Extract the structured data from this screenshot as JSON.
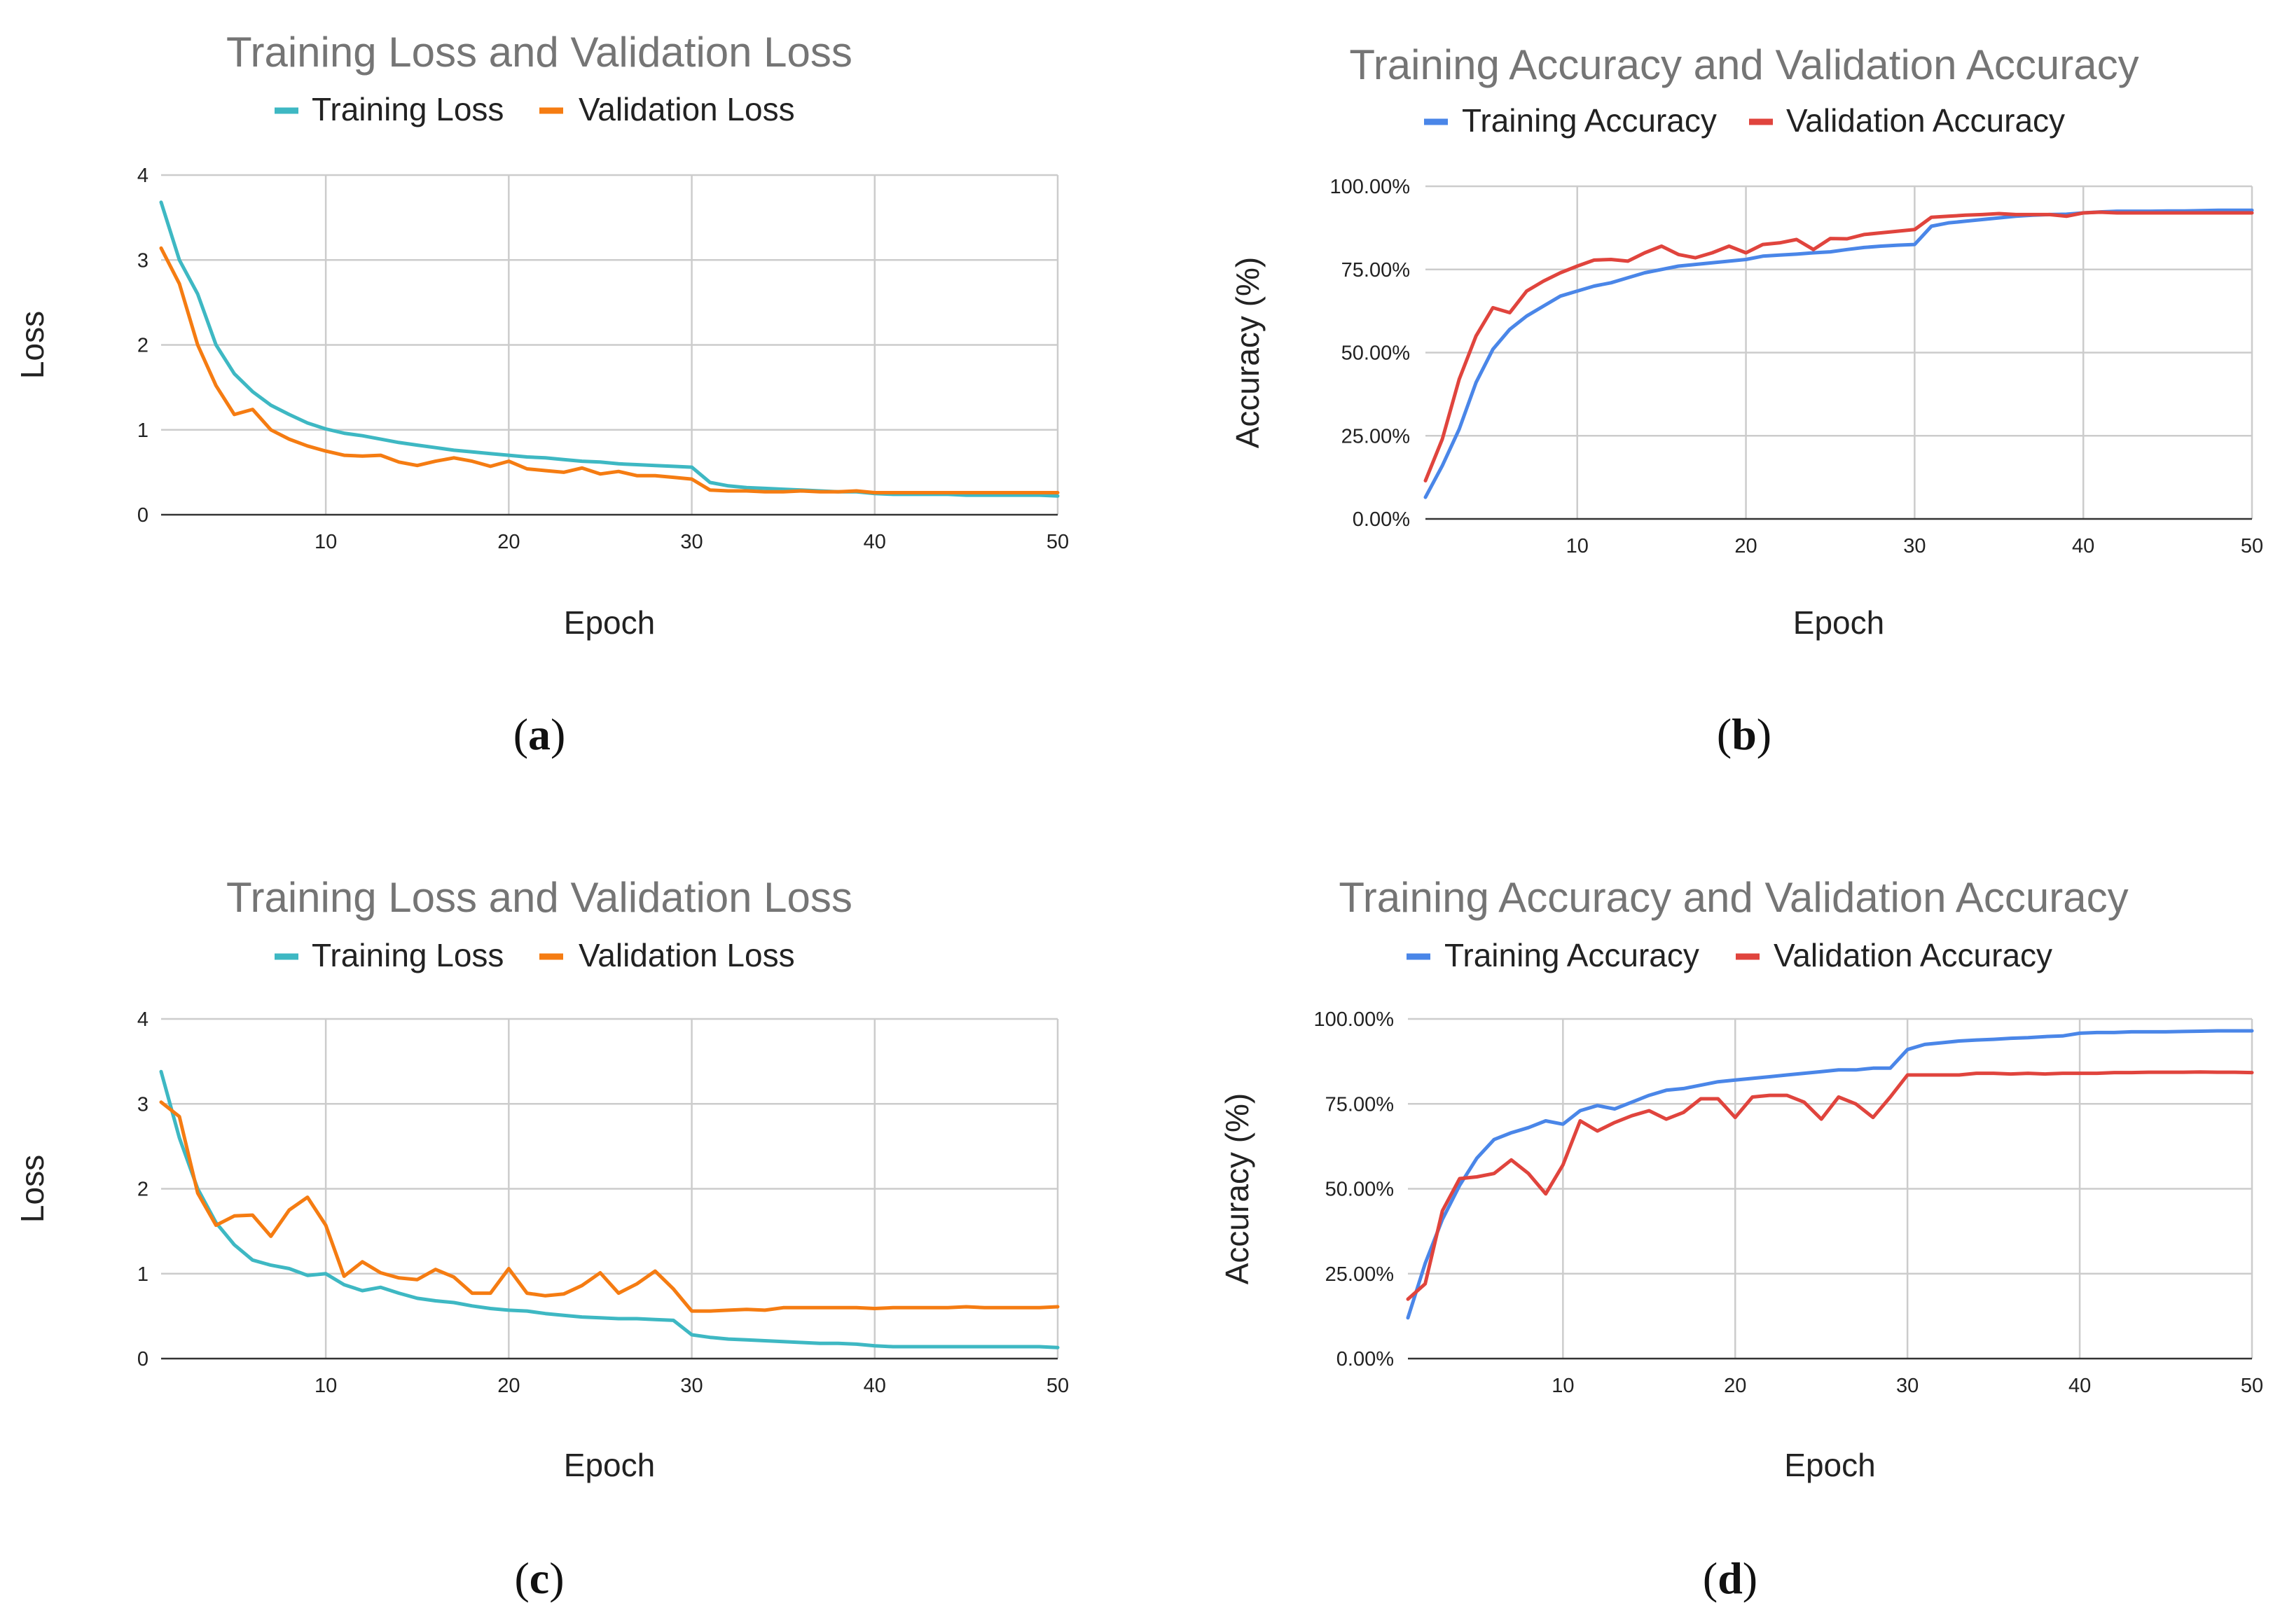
{
  "chart_data": [
    {
      "id": "a",
      "panel_label": "a",
      "type": "line",
      "title": "Training Loss and Validation Loss",
      "xlabel": "Epoch",
      "ylabel": "Loss",
      "xlim": [
        1,
        50
      ],
      "ylim": [
        0,
        4
      ],
      "xticks": [
        10,
        20,
        30,
        40,
        50
      ],
      "yticks": [
        0,
        1,
        2,
        3,
        4
      ],
      "ytick_labels": [
        "0",
        "1",
        "2",
        "3",
        "4"
      ],
      "grid": true,
      "legend": "top-center",
      "x": [
        1,
        2,
        3,
        4,
        5,
        6,
        7,
        8,
        9,
        10,
        11,
        12,
        13,
        14,
        15,
        16,
        17,
        18,
        19,
        20,
        21,
        22,
        23,
        24,
        25,
        26,
        27,
        28,
        29,
        30,
        31,
        32,
        33,
        34,
        35,
        36,
        37,
        38,
        39,
        40,
        41,
        42,
        43,
        44,
        45,
        46,
        47,
        48,
        49,
        50
      ],
      "series": [
        {
          "name": "Training Loss",
          "color": "#3eb8c3",
          "values": [
            3.68,
            3.0,
            2.6,
            2.0,
            1.66,
            1.45,
            1.29,
            1.18,
            1.08,
            1.01,
            0.96,
            0.93,
            0.89,
            0.85,
            0.82,
            0.79,
            0.76,
            0.74,
            0.72,
            0.7,
            0.68,
            0.67,
            0.65,
            0.63,
            0.62,
            0.6,
            0.59,
            0.58,
            0.57,
            0.56,
            0.38,
            0.34,
            0.32,
            0.31,
            0.3,
            0.29,
            0.28,
            0.27,
            0.27,
            0.25,
            0.24,
            0.24,
            0.24,
            0.24,
            0.23,
            0.23,
            0.23,
            0.23,
            0.23,
            0.22
          ]
        },
        {
          "name": "Validation Loss",
          "color": "#f57c12",
          "values": [
            3.14,
            2.72,
            2.0,
            1.52,
            1.18,
            1.24,
            1.0,
            0.89,
            0.81,
            0.75,
            0.7,
            0.69,
            0.7,
            0.62,
            0.58,
            0.63,
            0.67,
            0.63,
            0.57,
            0.63,
            0.54,
            0.52,
            0.5,
            0.55,
            0.48,
            0.51,
            0.46,
            0.46,
            0.44,
            0.42,
            0.29,
            0.28,
            0.28,
            0.27,
            0.27,
            0.28,
            0.27,
            0.27,
            0.28,
            0.26,
            0.26,
            0.26,
            0.26,
            0.26,
            0.26,
            0.26,
            0.26,
            0.26,
            0.26,
            0.26
          ]
        }
      ]
    },
    {
      "id": "b",
      "panel_label": "b",
      "type": "line",
      "title": "Training Accuracy and Validation Accuracy",
      "xlabel": "Epoch",
      "ylabel": "Accuracy (%)",
      "xlim": [
        1,
        50
      ],
      "ylim": [
        0,
        100
      ],
      "xticks": [
        10,
        20,
        30,
        40,
        50
      ],
      "yticks": [
        0,
        25,
        50,
        75,
        100
      ],
      "ytick_labels": [
        "0.00%",
        "25.00%",
        "50.00%",
        "75.00%",
        "100.00%"
      ],
      "grid": true,
      "legend": "top-center",
      "x": [
        1,
        2,
        3,
        4,
        5,
        6,
        7,
        8,
        9,
        10,
        11,
        12,
        13,
        14,
        15,
        16,
        17,
        18,
        19,
        20,
        21,
        22,
        23,
        24,
        25,
        26,
        27,
        28,
        29,
        30,
        31,
        32,
        33,
        34,
        35,
        36,
        37,
        38,
        39,
        40,
        41,
        42,
        43,
        44,
        45,
        46,
        47,
        48,
        49,
        50
      ],
      "series": [
        {
          "name": "Training Accuracy",
          "color": "#4a86e8",
          "values": [
            6.5,
            16,
            27,
            41,
            51,
            57,
            61,
            64,
            67,
            68.5,
            70,
            71,
            72.5,
            74,
            75,
            76,
            76.5,
            77,
            77.5,
            78,
            79,
            79.3,
            79.6,
            80,
            80.3,
            81,
            81.6,
            82,
            82.3,
            82.5,
            88,
            89,
            89.5,
            90,
            90.5,
            91,
            91.3,
            91.5,
            91.6,
            92,
            92.3,
            92.5,
            92.5,
            92.5,
            92.6,
            92.6,
            92.7,
            92.8,
            92.8,
            92.8
          ]
        },
        {
          "name": "Validation Accuracy",
          "color": "#e0443d",
          "values": [
            11.5,
            24,
            42,
            55,
            63.5,
            62,
            68.5,
            71.5,
            74,
            76,
            77.8,
            78,
            77.5,
            80,
            82,
            79.5,
            78.5,
            80,
            82,
            80,
            82.5,
            83,
            84,
            81,
            84.3,
            84.2,
            85.5,
            86,
            86.5,
            87,
            90.7,
            91,
            91.3,
            91.5,
            91.8,
            91.5,
            91.5,
            91.5,
            91,
            92,
            92.2,
            92,
            92,
            92,
            92,
            92,
            92,
            92,
            92,
            92
          ]
        }
      ]
    },
    {
      "id": "c",
      "panel_label": "c",
      "type": "line",
      "title": "Training Loss and Validation Loss",
      "xlabel": "Epoch",
      "ylabel": "Loss",
      "xlim": [
        1,
        50
      ],
      "ylim": [
        0,
        4
      ],
      "xticks": [
        10,
        20,
        30,
        40,
        50
      ],
      "yticks": [
        0,
        1,
        2,
        3,
        4
      ],
      "ytick_labels": [
        "0",
        "1",
        "2",
        "3",
        "4"
      ],
      "grid": true,
      "legend": "top-center",
      "x": [
        1,
        2,
        3,
        4,
        5,
        6,
        7,
        8,
        9,
        10,
        11,
        12,
        13,
        14,
        15,
        16,
        17,
        18,
        19,
        20,
        21,
        22,
        23,
        24,
        25,
        26,
        27,
        28,
        29,
        30,
        31,
        32,
        33,
        34,
        35,
        36,
        37,
        38,
        39,
        40,
        41,
        42,
        43,
        44,
        45,
        46,
        47,
        48,
        49,
        50
      ],
      "series": [
        {
          "name": "Training Loss",
          "color": "#3eb8c3",
          "values": [
            3.38,
            2.6,
            2.0,
            1.6,
            1.34,
            1.16,
            1.1,
            1.06,
            0.98,
            1.0,
            0.87,
            0.8,
            0.84,
            0.77,
            0.71,
            0.68,
            0.66,
            0.62,
            0.59,
            0.57,
            0.56,
            0.53,
            0.51,
            0.49,
            0.48,
            0.47,
            0.47,
            0.46,
            0.45,
            0.28,
            0.25,
            0.23,
            0.22,
            0.21,
            0.2,
            0.19,
            0.18,
            0.18,
            0.17,
            0.15,
            0.14,
            0.14,
            0.14,
            0.14,
            0.14,
            0.14,
            0.14,
            0.14,
            0.14,
            0.13
          ]
        },
        {
          "name": "Validation Loss",
          "color": "#f57c12",
          "values": [
            3.02,
            2.85,
            1.95,
            1.57,
            1.68,
            1.69,
            1.44,
            1.75,
            1.9,
            1.57,
            0.97,
            1.14,
            1.01,
            0.95,
            0.93,
            1.05,
            0.96,
            0.77,
            0.77,
            1.06,
            0.77,
            0.74,
            0.76,
            0.86,
            1.01,
            0.77,
            0.88,
            1.03,
            0.82,
            0.56,
            0.56,
            0.57,
            0.58,
            0.57,
            0.6,
            0.6,
            0.6,
            0.6,
            0.6,
            0.59,
            0.6,
            0.6,
            0.6,
            0.6,
            0.61,
            0.6,
            0.6,
            0.6,
            0.6,
            0.61
          ]
        }
      ]
    },
    {
      "id": "d",
      "panel_label": "d",
      "type": "line",
      "title": "Training Accuracy and Validation Accuracy",
      "xlabel": "Epoch",
      "ylabel": "Accuracy (%)",
      "xlim": [
        1,
        50
      ],
      "ylim": [
        0,
        100
      ],
      "xticks": [
        10,
        20,
        30,
        40,
        50
      ],
      "yticks": [
        0,
        25,
        50,
        75,
        100
      ],
      "ytick_labels": [
        "0.00%",
        "25.00%",
        "50.00%",
        "75.00%",
        "100.00%"
      ],
      "grid": true,
      "legend": "top-center",
      "x": [
        1,
        2,
        3,
        4,
        5,
        6,
        7,
        8,
        9,
        10,
        11,
        12,
        13,
        14,
        15,
        16,
        17,
        18,
        19,
        20,
        21,
        22,
        23,
        24,
        25,
        26,
        27,
        28,
        29,
        30,
        31,
        32,
        33,
        34,
        35,
        36,
        37,
        38,
        39,
        40,
        41,
        42,
        43,
        44,
        45,
        46,
        47,
        48,
        49,
        50
      ],
      "series": [
        {
          "name": "Training Accuracy",
          "color": "#4a86e8",
          "values": [
            12,
            28,
            41,
            51,
            59,
            64.5,
            66.5,
            68,
            70,
            69,
            73,
            74.5,
            73.5,
            75.5,
            77.5,
            79,
            79.5,
            80.5,
            81.5,
            82,
            82.5,
            83,
            83.5,
            84,
            84.5,
            85,
            85,
            85.5,
            85.5,
            91,
            92.5,
            93,
            93.5,
            93.8,
            94,
            94.3,
            94.5,
            94.8,
            95,
            95.8,
            96,
            96,
            96.2,
            96.2,
            96.2,
            96.3,
            96.4,
            96.5,
            96.5,
            96.5
          ]
        },
        {
          "name": "Validation Accuracy",
          "color": "#e0443d",
          "values": [
            17.5,
            22,
            43.5,
            53,
            53.5,
            54.5,
            58.5,
            54.5,
            48.5,
            57,
            70,
            67,
            69.5,
            71.5,
            73,
            70.5,
            72.5,
            76.5,
            76.5,
            71,
            77,
            77.5,
            77.5,
            75.5,
            70.5,
            77,
            75,
            71,
            77,
            83.5,
            83.5,
            83.5,
            83.5,
            84,
            84,
            83.8,
            84,
            83.8,
            84,
            84,
            84,
            84.2,
            84.2,
            84.3,
            84.3,
            84.3,
            84.4,
            84.3,
            84.3,
            84.2
          ]
        }
      ]
    }
  ]
}
